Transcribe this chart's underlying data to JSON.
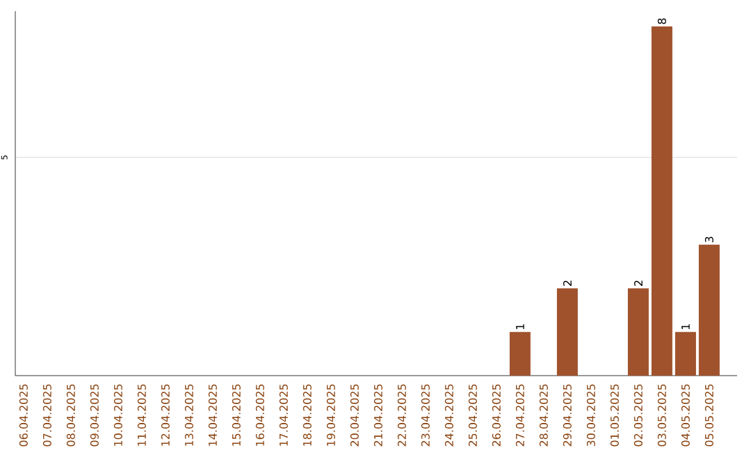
{
  "chart_data": {
    "type": "bar",
    "ylim": [
      0,
      8.35
    ],
    "categories": [
      "06.04.2025",
      "07.04.2025",
      "08.04.2025",
      "09.04.2025",
      "10.04.2025",
      "11.04.2025",
      "12.04.2025",
      "13.04.2025",
      "14.04.2025",
      "15.04.2025",
      "16.04.2025",
      "17.04.2025",
      "18.04.2025",
      "19.04.2025",
      "20.04.2025",
      "21.04.2025",
      "22.04.2025",
      "23.04.2025",
      "24.04.2025",
      "25.04.2025",
      "26.04.2025",
      "27.04.2025",
      "28.04.2025",
      "29.04.2025",
      "30.04.2025",
      "01.05.2025",
      "02.05.2025",
      "03.05.2025",
      "04.05.2025",
      "05.05.2025"
    ],
    "values": [
      null,
      null,
      null,
      null,
      null,
      null,
      null,
      null,
      null,
      null,
      null,
      null,
      null,
      null,
      null,
      null,
      null,
      null,
      null,
      null,
      null,
      1,
      null,
      2,
      null,
      null,
      2,
      8,
      1,
      3
    ],
    "value_labels": [
      null,
      null,
      null,
      null,
      null,
      null,
      null,
      null,
      null,
      null,
      null,
      null,
      null,
      null,
      null,
      null,
      null,
      null,
      null,
      null,
      null,
      "1",
      null,
      "2",
      null,
      null,
      "2",
      "8",
      "1",
      "3"
    ],
    "color": "#a0522d",
    "yticks": [
      5
    ],
    "grid": "y"
  }
}
